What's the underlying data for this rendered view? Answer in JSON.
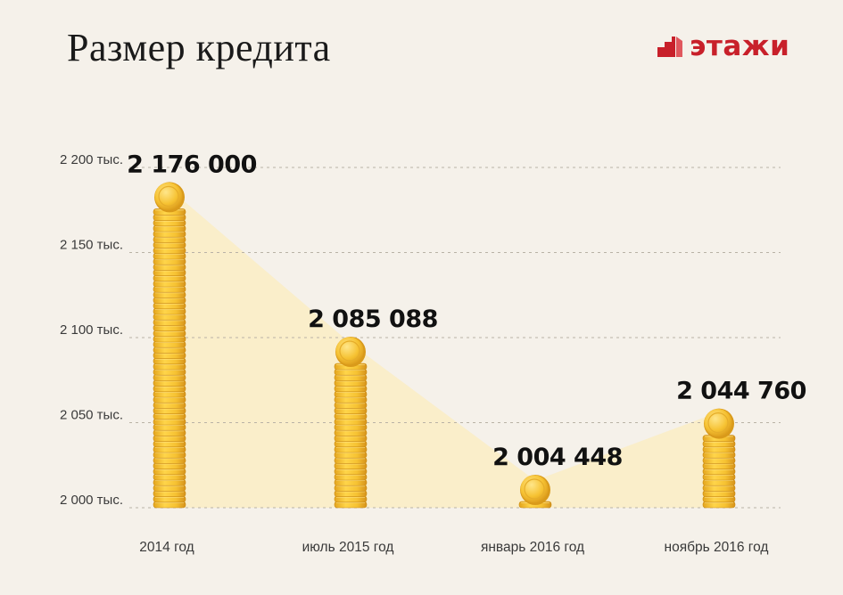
{
  "header": {
    "title": "Размер кредита",
    "logo_text": "этажи",
    "logo_icon": "building-stairs-icon",
    "logo_color": "#c8202a"
  },
  "chart_data": {
    "type": "bar",
    "title": "Размер кредита",
    "categories": [
      "2014 год",
      "июль 2015 год",
      "январь 2016 год",
      "ноябрь 2016 год"
    ],
    "values": [
      2176000,
      2085088,
      2004448,
      2044760
    ],
    "value_labels": [
      "2 176 000",
      "2 085 088",
      "2 004 448",
      "2 044 760"
    ],
    "y_ticks": [
      2000000,
      2050000,
      2100000,
      2150000,
      2200000
    ],
    "y_tick_labels": [
      "2 000 тыс.",
      "2 050 тыс.",
      "2 100 тыс.",
      "2 150 тыс.",
      "2 200 тыс."
    ],
    "ylim": [
      2000000,
      2200000
    ],
    "grid": "dashed horizontal",
    "mark_style": "coin stacks",
    "colors": {
      "coin": "#f3c130",
      "coin_dark": "#d99a1a",
      "coin_light": "#ffe27a",
      "trend_fill": "#fbecbf"
    }
  }
}
